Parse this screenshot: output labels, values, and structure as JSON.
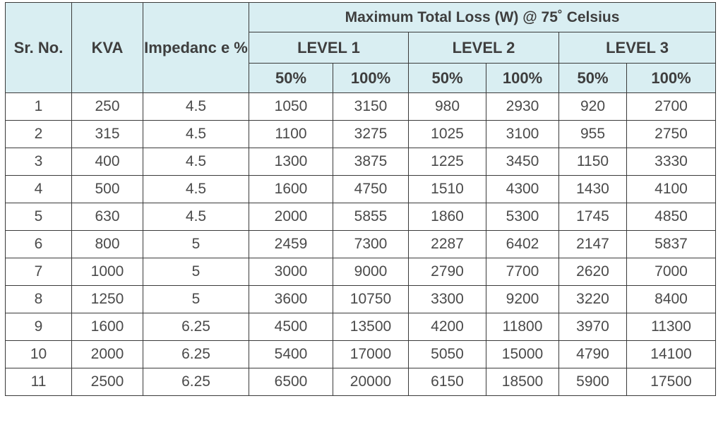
{
  "header": {
    "sr_no": "Sr. No.",
    "kva": "KVA",
    "impedance": "Impedanc e %",
    "max_loss_title": "Maximum Total Loss (W) @ 75˚ Celsius",
    "levels": [
      "LEVEL 1",
      "LEVEL 2",
      "LEVEL 3"
    ],
    "loads": [
      "50%",
      "100%",
      "50%",
      "100%",
      "50%",
      "100%"
    ]
  },
  "rows": [
    [
      "1",
      "250",
      "4.5",
      "1050",
      "3150",
      "980",
      "2930",
      "920",
      "2700"
    ],
    [
      "2",
      "315",
      "4.5",
      "1100",
      "3275",
      "1025",
      "3100",
      "955",
      "2750"
    ],
    [
      "3",
      "400",
      "4.5",
      "1300",
      "3875",
      "1225",
      "3450",
      "1150",
      "3330"
    ],
    [
      "4",
      "500",
      "4.5",
      "1600",
      "4750",
      "1510",
      "4300",
      "1430",
      "4100"
    ],
    [
      "5",
      "630",
      "4.5",
      "2000",
      "5855",
      "1860",
      "5300",
      "1745",
      "4850"
    ],
    [
      "6",
      "800",
      "5",
      "2459",
      "7300",
      "2287",
      "6402",
      "2147",
      "5837"
    ],
    [
      "7",
      "1000",
      "5",
      "3000",
      "9000",
      "2790",
      "7700",
      "2620",
      "7000"
    ],
    [
      "8",
      "1250",
      "5",
      "3600",
      "10750",
      "3300",
      "9200",
      "3220",
      "8400"
    ],
    [
      "9",
      "1600",
      "6.25",
      "4500",
      "13500",
      "4200",
      "11800",
      "3970",
      "11300"
    ],
    [
      "10",
      "2000",
      "6.25",
      "5400",
      "17000",
      "5050",
      "15000",
      "4790",
      "14100"
    ],
    [
      "11",
      "2500",
      "6.25",
      "6500",
      "20000",
      "6150",
      "18500",
      "5900",
      "17500"
    ]
  ],
  "colors": {
    "header_bg": "#d9eef2",
    "header_text": "#3e3e3e",
    "body_text": "#4a4a4a",
    "border": "#3a3a3a"
  }
}
